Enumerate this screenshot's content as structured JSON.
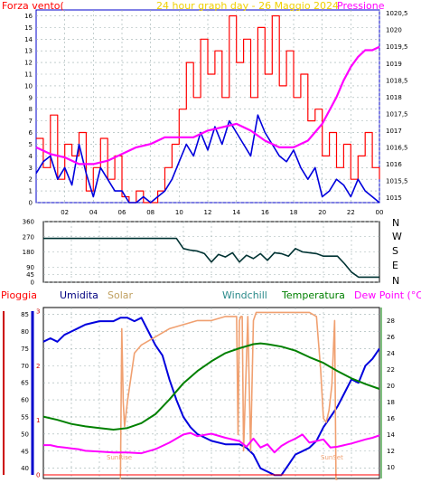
{
  "colors": {
    "wind": "#ff0000",
    "gust": "#0000dd",
    "pressure": "#ff00ff",
    "direction": "#003333",
    "humidity": "#0000dd",
    "solar": "#f0a070",
    "temperature": "#008000",
    "dewpoint": "#ff00ff",
    "rain": "#ff0000",
    "grid": "#9fb0b0",
    "frame": "#0000cc"
  },
  "labels": {
    "wind": "Forza vento(",
    "title": "24 hour graph day - 26 Maggio 2024",
    "pressure": "Pressione",
    "rain": "Pioggia",
    "humidity": "Umidita",
    "solar": "Solar",
    "windchill": "Windchill",
    "temperature": "Temperatura",
    "dewpoint": "Dew Point (°C)",
    "sunrise": "SunRise",
    "sunset": "SunSet",
    "compass": [
      "N",
      "W",
      "S",
      "E",
      "N"
    ]
  },
  "chart_data": [
    {
      "type": "line",
      "title": "24 hour graph day - 26 Maggio 2024",
      "x_ticks": [
        "02",
        "04",
        "06",
        "08",
        "10",
        "12",
        "14",
        "16",
        "18",
        "20",
        "22",
        "00"
      ],
      "y_left_ticks": [
        "0",
        "1",
        "2",
        "3",
        "4",
        "5",
        "6",
        "7",
        "8",
        "9",
        "10",
        "11",
        "12",
        "13",
        "14",
        "15",
        "16"
      ],
      "y_right_ticks": [
        "1015",
        "1015,5",
        "1016",
        "1016,5",
        "1017",
        "1017,5",
        "1018",
        "1018,5",
        "1019",
        "1019,5",
        "1020",
        "1020,5"
      ],
      "ylim_left": [
        0,
        16.5
      ],
      "ylim_right": [
        1014.85,
        1020.6
      ],
      "xlim": [
        0,
        24
      ],
      "series": [
        {
          "name": "Forza vento",
          "axis": "left",
          "x": [
            0,
            0.5,
            1,
            1.5,
            2,
            2.5,
            3,
            3.5,
            4,
            4.5,
            5,
            5.5,
            6,
            6.5,
            7,
            7.5,
            8,
            8.5,
            9,
            9.5,
            10,
            10.5,
            11,
            11.5,
            12,
            12.5,
            13,
            13.5,
            14,
            14.5,
            15,
            15.5,
            16,
            16.5,
            17,
            17.5,
            18,
            18.5,
            19,
            19.5,
            20,
            20.5,
            21,
            21.5,
            22,
            22.5,
            23,
            23.5,
            24
          ],
          "values": [
            5.5,
            3,
            7.5,
            2,
            5,
            4,
            6,
            1,
            3,
            5.5,
            2,
            4,
            0.5,
            0,
            1,
            0,
            0,
            1,
            3,
            5,
            8,
            12,
            9,
            14,
            11,
            13,
            9,
            16,
            12,
            14,
            9,
            15,
            11,
            16,
            10,
            13,
            9,
            11,
            7,
            8,
            4,
            6,
            3,
            5,
            2,
            4,
            6,
            3,
            2
          ]
        },
        {
          "name": "Raffica",
          "axis": "left",
          "x": [
            0,
            0.5,
            1,
            1.5,
            2,
            2.5,
            3,
            3.5,
            4,
            4.5,
            5,
            5.5,
            6,
            6.5,
            7,
            7.5,
            8,
            8.5,
            9,
            9.5,
            10,
            10.5,
            11,
            11.5,
            12,
            12.5,
            13,
            13.5,
            14,
            14.5,
            15,
            15.5,
            16,
            16.5,
            17,
            17.5,
            18,
            18.5,
            19,
            19.5,
            20,
            20.5,
            21,
            21.5,
            22,
            22.5,
            23,
            23.5,
            24
          ],
          "values": [
            2.5,
            3.5,
            4,
            2,
            3,
            1.5,
            5,
            2.5,
            0.5,
            3,
            2,
            1,
            1,
            0,
            0,
            0.5,
            0,
            0.5,
            1,
            2,
            3.5,
            5,
            4,
            6,
            4.5,
            6.5,
            5,
            7,
            6,
            5,
            4,
            7.5,
            6,
            5,
            4,
            3.5,
            4.5,
            3,
            2,
            3,
            0.5,
            1,
            2,
            1.5,
            0.5,
            2,
            1,
            0.5,
            0
          ]
        },
        {
          "name": "Pressione",
          "axis": "right",
          "x": [
            0,
            1,
            2,
            3,
            4,
            5,
            6,
            7,
            8,
            9,
            10,
            11,
            12,
            13,
            14,
            15,
            16,
            17,
            18,
            19,
            20,
            20.5,
            21,
            21.5,
            22,
            22.5,
            23,
            23.5,
            24
          ],
          "values": [
            1016.5,
            1016.3,
            1016.2,
            1016.0,
            1016.0,
            1016.1,
            1016.3,
            1016.5,
            1016.6,
            1016.8,
            1016.8,
            1016.8,
            1017.0,
            1017.1,
            1017.2,
            1017.0,
            1016.7,
            1016.5,
            1016.5,
            1016.7,
            1017.2,
            1017.6,
            1018.0,
            1018.5,
            1018.9,
            1019.2,
            1019.4,
            1019.4,
            1019.5
          ]
        }
      ]
    },
    {
      "type": "line",
      "title": "",
      "y_ticks": [
        "0",
        "45",
        "90",
        "180",
        "270",
        "360"
      ],
      "ylim": [
        0,
        360
      ],
      "xlim": [
        0,
        24
      ],
      "series": [
        {
          "name": "Direzione vento",
          "x": [
            0,
            1,
            2,
            3,
            4,
            5,
            6,
            7,
            8,
            8.5,
            9,
            9.5,
            10,
            10.5,
            11,
            11.5,
            12,
            12.5,
            13,
            13.5,
            14,
            14.5,
            15,
            15.5,
            16,
            16.5,
            17,
            17.5,
            18,
            18.5,
            19,
            19.5,
            20,
            21,
            21.5,
            22,
            22.5,
            23,
            24
          ],
          "values": [
            260,
            260,
            260,
            260,
            260,
            260,
            260,
            260,
            260,
            260,
            260,
            260,
            200,
            190,
            185,
            170,
            120,
            165,
            150,
            175,
            120,
            160,
            140,
            170,
            130,
            175,
            170,
            155,
            200,
            180,
            175,
            170,
            155,
            155,
            110,
            60,
            30,
            30,
            30
          ]
        }
      ]
    },
    {
      "type": "line",
      "title": "",
      "y_left_ticks": [
        "40",
        "45",
        "50",
        "55",
        "60",
        "65",
        "70",
        "75",
        "80",
        "85"
      ],
      "y_right_ticks": [
        "10",
        "12",
        "14",
        "16",
        "18",
        "20",
        "22",
        "24",
        "26",
        "28"
      ],
      "rain_ticks": [
        "0",
        "1",
        "2",
        "3"
      ],
      "ylim_left": [
        37,
        87
      ],
      "ylim_right": [
        8.6,
        29.6
      ],
      "xlim": [
        0,
        24
      ],
      "annotations": [
        "SunRise",
        "SunSet"
      ],
      "series": [
        {
          "name": "Umidita",
          "axis": "left",
          "x": [
            0,
            0.5,
            1,
            1.5,
            2,
            2.5,
            3,
            4,
            5,
            5.5,
            6,
            6.5,
            7,
            7.5,
            8,
            8.5,
            9,
            9.5,
            10,
            10.5,
            11,
            11.5,
            12,
            13,
            14,
            14.5,
            15,
            15.5,
            16,
            16.5,
            17,
            17.5,
            18,
            18.5,
            19,
            19.5,
            20,
            20.5,
            21,
            21.5,
            22,
            22.5,
            23,
            23.5,
            24
          ],
          "values": [
            77,
            78,
            77,
            79,
            80,
            81,
            82,
            83,
            83,
            84,
            84,
            83,
            84,
            80,
            76,
            73,
            66,
            60,
            55,
            52,
            50,
            49,
            48,
            47,
            47,
            46,
            44,
            40,
            39,
            38,
            38,
            41,
            44,
            45,
            46,
            48,
            52,
            55,
            58,
            62,
            66,
            65,
            70,
            72,
            75
          ]
        },
        {
          "name": "Solar",
          "axis": "right",
          "x": [
            5.5,
            5.6,
            5.7,
            5.8,
            6,
            6.5,
            7,
            8,
            9,
            10,
            11,
            12,
            13,
            13.8,
            13.9,
            14.0,
            14.1,
            14.2,
            14.3,
            14.6,
            14.8,
            15,
            15.2,
            16,
            17,
            18,
            19,
            19.5,
            19.8,
            20,
            20.2,
            20.4,
            20.6,
            20.8,
            20.9,
            21
          ],
          "values": [
            8.5,
            27,
            18,
            15,
            18,
            24,
            25,
            26,
            27,
            27.5,
            28,
            28,
            28.5,
            28.5,
            14,
            28,
            28.5,
            28.5,
            12,
            28.5,
            12,
            28,
            29,
            29,
            29,
            29,
            29,
            28.5,
            22,
            16,
            15.5,
            17,
            20,
            28,
            8.5,
            8.5
          ]
        },
        {
          "name": "Temperatura",
          "axis": "right",
          "x": [
            0,
            1,
            2,
            3,
            4,
            5,
            6,
            7,
            8,
            9,
            10,
            11,
            12,
            13,
            14,
            15,
            15.5,
            16,
            17,
            18,
            19,
            20,
            21,
            22,
            23,
            24
          ],
          "values": [
            16.2,
            15.8,
            15.3,
            15,
            14.8,
            14.6,
            14.8,
            15.4,
            16.5,
            18.3,
            20.3,
            21.8,
            23.0,
            24.0,
            24.6,
            25.1,
            25.2,
            25.1,
            24.8,
            24.3,
            23.5,
            22.8,
            21.8,
            20.9,
            20.2,
            19.6
          ]
        },
        {
          "name": "Dew Point",
          "axis": "right",
          "x": [
            0,
            0.5,
            1,
            1.5,
            2,
            2.5,
            3,
            4,
            5,
            6,
            7,
            8,
            9,
            10,
            10.5,
            11,
            12,
            13,
            14,
            14.5,
            15,
            15.5,
            16,
            16.5,
            17,
            17.5,
            18,
            18.5,
            19,
            20,
            20.5,
            21,
            22,
            23,
            23.5,
            24
          ],
          "values": [
            12.7,
            12.7,
            12.5,
            12.4,
            12.3,
            12.2,
            12.0,
            11.9,
            11.8,
            11.8,
            11.7,
            12.2,
            13.0,
            14.0,
            14.2,
            13.8,
            14.1,
            13.6,
            13.2,
            12.5,
            13.5,
            12.4,
            12.8,
            11.8,
            12.6,
            13.1,
            13.5,
            14.0,
            13.0,
            13.4,
            12.4,
            12.5,
            12.9,
            13.4,
            13.6,
            13.9
          ]
        },
        {
          "name": "Pioggia",
          "axis": "rain",
          "x": [
            0,
            24
          ],
          "values": [
            0,
            0
          ]
        }
      ]
    }
  ]
}
